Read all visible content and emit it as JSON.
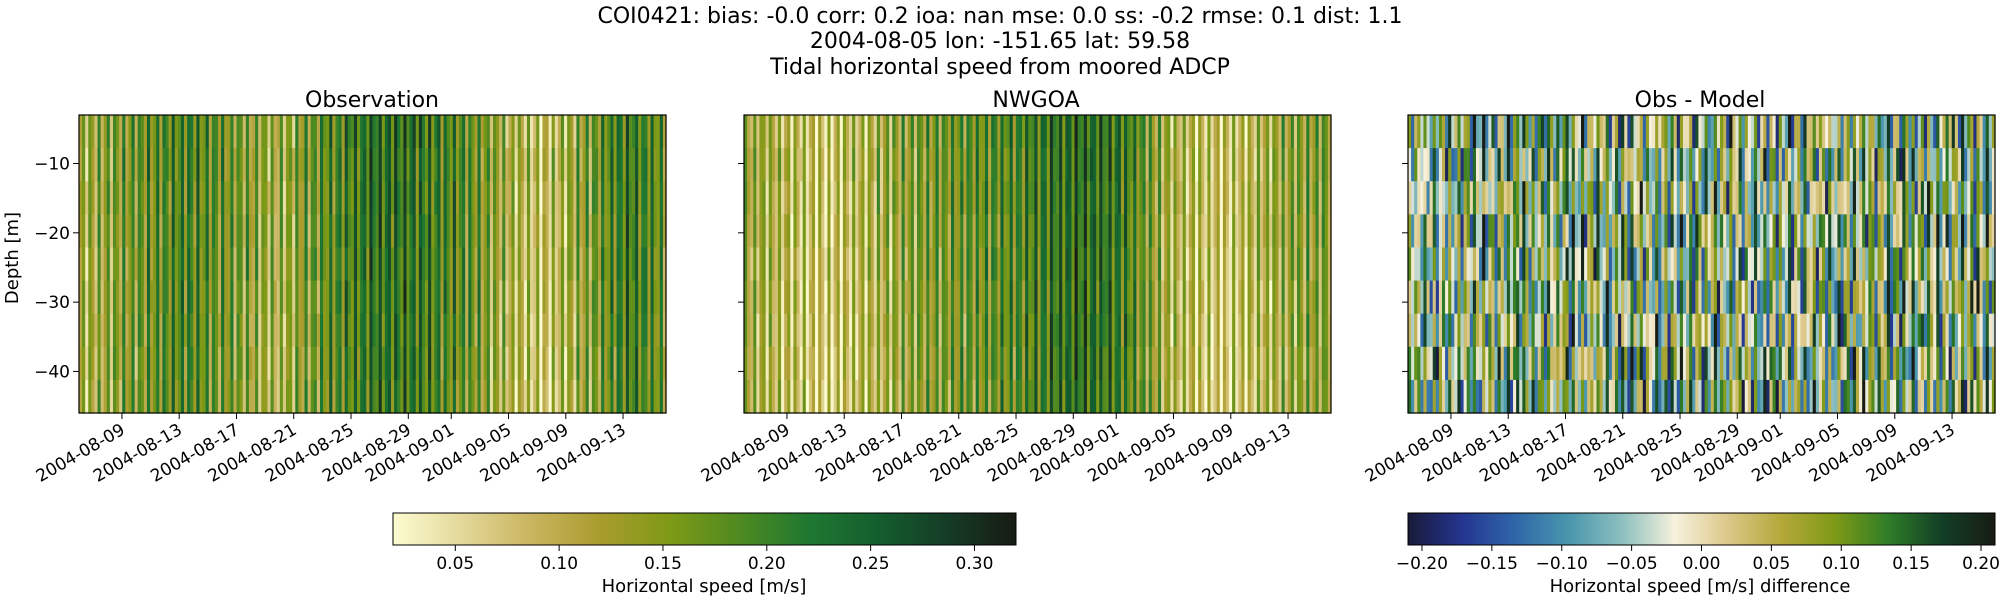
{
  "figure": {
    "title_lines": [
      "COI0421: bias: -0.0  corr: 0.2  ioa: nan  mse: 0.0  ss: -0.2  rmse: 0.1  dist: 1.1",
      "2004-08-05 lon: -151.65 lat: 59.58",
      "Tidal horizontal speed from moored ADCP"
    ]
  },
  "chart_data": [
    {
      "type": "heatmap",
      "title": "Observation",
      "xlabel": "",
      "ylabel": "Depth [m]",
      "x_tick_labels": [
        "2004-08-09",
        "2004-08-13",
        "2004-08-17",
        "2004-08-21",
        "2004-08-25",
        "2004-08-29",
        "2004-09-01",
        "2004-09-05",
        "2004-09-09",
        "2004-09-13"
      ],
      "y_tick_labels": [
        "−10",
        "−20",
        "−30",
        "−40"
      ],
      "y_ticks": [
        -10,
        -20,
        -30,
        -40
      ],
      "ylim": [
        -46,
        -3
      ],
      "x_range": [
        "2004-08-06",
        "2004-09-16"
      ],
      "colormap": "speed",
      "value_range": [
        0.02,
        0.32
      ],
      "pattern": {
        "bands": [
          [
            0.0,
            0.12
          ],
          [
            0.18,
            0.2
          ],
          [
            0.28,
            0.15
          ],
          [
            0.34,
            0.12
          ],
          [
            0.42,
            0.18
          ],
          [
            0.5,
            0.23
          ],
          [
            0.58,
            0.22
          ],
          [
            0.66,
            0.18
          ],
          [
            0.74,
            0.11
          ],
          [
            0.8,
            0.09
          ],
          [
            0.86,
            0.14
          ],
          [
            0.94,
            0.22
          ],
          [
            1.0,
            0.17
          ]
        ],
        "tidal_amplitude": 0.08,
        "seed": 11
      }
    },
    {
      "type": "heatmap",
      "title": "NWGOA",
      "xlabel": "",
      "ylabel": "",
      "x_tick_labels": [
        "2004-08-09",
        "2004-08-13",
        "2004-08-17",
        "2004-08-21",
        "2004-08-25",
        "2004-08-29",
        "2004-09-01",
        "2004-09-05",
        "2004-09-09",
        "2004-09-13"
      ],
      "y_tick_labels": [],
      "y_ticks": [
        -10,
        -20,
        -30,
        -40
      ],
      "ylim": [
        -46,
        -3
      ],
      "x_range": [
        "2004-08-06",
        "2004-09-16"
      ],
      "colormap": "speed",
      "value_range": [
        0.02,
        0.32
      ],
      "pattern": {
        "bands": [
          [
            0.0,
            0.13
          ],
          [
            0.14,
            0.08
          ],
          [
            0.3,
            0.15
          ],
          [
            0.46,
            0.19
          ],
          [
            0.56,
            0.24
          ],
          [
            0.64,
            0.22
          ],
          [
            0.72,
            0.12
          ],
          [
            0.82,
            0.08
          ],
          [
            0.92,
            0.13
          ],
          [
            1.0,
            0.16
          ]
        ],
        "tidal_amplitude": 0.08,
        "seed": 23
      }
    },
    {
      "type": "heatmap",
      "title": "Obs - Model",
      "xlabel": "",
      "ylabel": "",
      "x_tick_labels": [
        "2004-08-09",
        "2004-08-13",
        "2004-08-17",
        "2004-08-21",
        "2004-08-25",
        "2004-08-29",
        "2004-09-01",
        "2004-09-05",
        "2004-09-09",
        "2004-09-13"
      ],
      "y_tick_labels": [],
      "y_ticks": [
        -10,
        -20,
        -30,
        -40
      ],
      "ylim": [
        -46,
        -3
      ],
      "x_range": [
        "2004-08-06",
        "2004-09-16"
      ],
      "colormap": "balance-diff",
      "value_range": [
        -0.21,
        0.21
      ],
      "pattern": {
        "bands": [
          [
            0.0,
            -0.02
          ],
          [
            0.2,
            0.03
          ],
          [
            0.4,
            0.02
          ],
          [
            0.6,
            0.0
          ],
          [
            0.8,
            0.03
          ],
          [
            1.0,
            0.02
          ]
        ],
        "tidal_amplitude": 0.12,
        "seed": 37
      }
    }
  ],
  "colorbars": [
    {
      "label": "Horizontal speed [m/s]",
      "range": [
        0.02,
        0.32
      ],
      "ticks": [
        0.05,
        0.1,
        0.15,
        0.2,
        0.25,
        0.3
      ],
      "tick_labels": [
        "0.05",
        "0.10",
        "0.15",
        "0.20",
        "0.25",
        "0.30"
      ],
      "colors": [
        "#fdfcd1",
        "#e3d89a",
        "#c9b55f",
        "#a99c2d",
        "#7e9a16",
        "#4f8a20",
        "#1f7830",
        "#135e2e",
        "#153c26",
        "#171b13"
      ]
    },
    {
      "label": "Horizontal speed [m/s] difference",
      "range": [
        -0.21,
        0.21
      ],
      "ticks": [
        -0.2,
        -0.15,
        -0.1,
        -0.05,
        0.0,
        0.05,
        0.1,
        0.15,
        0.2
      ],
      "tick_labels": [
        "−0.20",
        "−0.15",
        "−0.10",
        "−0.05",
        "0.00",
        "0.05",
        "0.10",
        "0.15",
        "0.20"
      ],
      "colors": [
        "#191a39",
        "#243590",
        "#2f66a9",
        "#4996ad",
        "#8cbfbf",
        "#f7f1dd",
        "#dcc889",
        "#b4a83a",
        "#7e9a16",
        "#2e7d28",
        "#133f26",
        "#171b13"
      ]
    }
  ]
}
